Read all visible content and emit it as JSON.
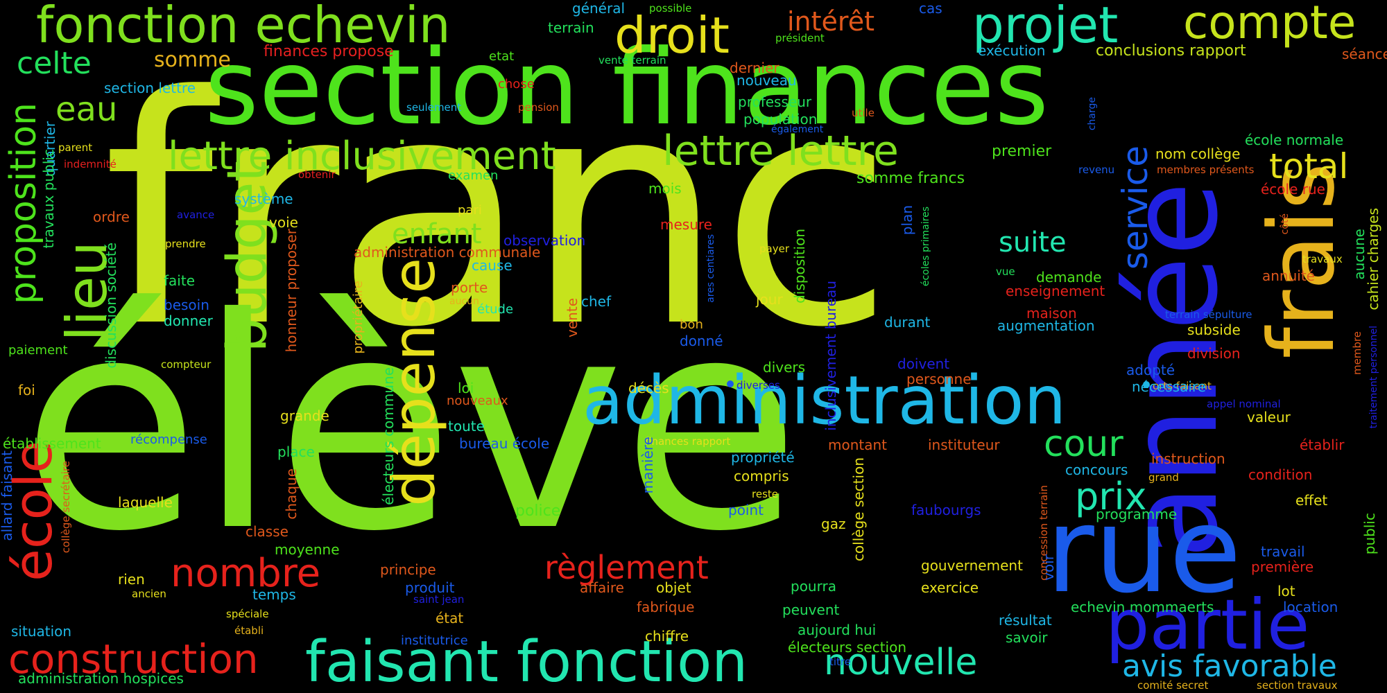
{
  "colors": {
    "background": "#000000",
    "palette": [
      "#c6e31c",
      "#7fe01e",
      "#4ee31c",
      "#23e05c",
      "#22e6b0",
      "#1fb7e6",
      "#1a5bea",
      "#2020e0",
      "#e6b21c",
      "#e6e01c",
      "#e0581c",
      "#e6221c",
      "#e62020"
    ]
  },
  "words": [
    {
      "text": "franc"
    },
    {
      "text": "élève"
    },
    {
      "text": "section finances"
    },
    {
      "text": "administration"
    },
    {
      "text": "année"
    },
    {
      "text": "frais"
    },
    {
      "text": "rue"
    },
    {
      "text": "partie"
    },
    {
      "text": "faisant fonction"
    },
    {
      "text": "fonction echevin"
    },
    {
      "text": "droit"
    },
    {
      "text": "projet"
    },
    {
      "text": "compte"
    },
    {
      "text": "lettre inclusivement"
    },
    {
      "text": "lettre lettre"
    },
    {
      "text": "budget"
    },
    {
      "text": "dépense"
    },
    {
      "text": "lieu"
    },
    {
      "text": "école"
    },
    {
      "text": "proposition"
    },
    {
      "text": "construction"
    },
    {
      "text": "nombre"
    },
    {
      "text": "règlement"
    },
    {
      "text": "nouvelle"
    },
    {
      "text": "service"
    },
    {
      "text": "total"
    },
    {
      "text": "avis favorable"
    },
    {
      "text": "cour"
    },
    {
      "text": "prix"
    },
    {
      "text": "suite"
    },
    {
      "text": "enfant"
    },
    {
      "text": "eau"
    },
    {
      "text": "celte"
    },
    {
      "text": "somme"
    },
    {
      "text": "intérêt"
    },
    {
      "text": "général"
    },
    {
      "text": "possible"
    },
    {
      "text": "terrain"
    },
    {
      "text": "président"
    },
    {
      "text": "cas"
    },
    {
      "text": "exécution"
    },
    {
      "text": "conclusions rapport"
    },
    {
      "text": "séance"
    },
    {
      "text": "finances propose"
    },
    {
      "text": "etat"
    },
    {
      "text": "vente terrain"
    },
    {
      "text": "dernier"
    },
    {
      "text": "nouveau"
    },
    {
      "text": "chose"
    },
    {
      "text": "pension"
    },
    {
      "text": "seulement"
    },
    {
      "text": "section lettre"
    },
    {
      "text": "professeur"
    },
    {
      "text": "population"
    },
    {
      "text": "utile"
    },
    {
      "text": "également"
    },
    {
      "text": "charge"
    },
    {
      "text": "école normale"
    },
    {
      "text": "quartier"
    },
    {
      "text": "travaux public"
    },
    {
      "text": "indemnité"
    },
    {
      "text": "parent"
    },
    {
      "text": "obtenir"
    },
    {
      "text": "examen"
    },
    {
      "text": "somme francs"
    },
    {
      "text": "premier"
    },
    {
      "text": "nom collège"
    },
    {
      "text": "revenu"
    },
    {
      "text": "membres présents"
    },
    {
      "text": "école rue"
    },
    {
      "text": "système"
    },
    {
      "text": "avance"
    },
    {
      "text": "mois"
    },
    {
      "text": "ordre"
    },
    {
      "text": "voie"
    },
    {
      "text": "pari"
    },
    {
      "text": "mesure"
    },
    {
      "text": "plan"
    },
    {
      "text": "écoles primaires"
    },
    {
      "text": "côté"
    },
    {
      "text": "prendre"
    },
    {
      "text": "observation"
    },
    {
      "text": "administration communale"
    },
    {
      "text": "payer"
    },
    {
      "text": "ares centiares"
    },
    {
      "text": "travaux"
    },
    {
      "text": "cahier charges"
    },
    {
      "text": "cause"
    },
    {
      "text": "vue"
    },
    {
      "text": "demande"
    },
    {
      "text": "annuité"
    },
    {
      "text": "faite"
    },
    {
      "text": "porte"
    },
    {
      "text": "aucun"
    },
    {
      "text": "chef"
    },
    {
      "text": "jour"
    },
    {
      "text": "disposition"
    },
    {
      "text": "enseignement"
    },
    {
      "text": "aucune"
    },
    {
      "text": "besoin"
    },
    {
      "text": "honneur proposer"
    },
    {
      "text": "propriétaire"
    },
    {
      "text": "discussion société"
    },
    {
      "text": "donner"
    },
    {
      "text": "étude"
    },
    {
      "text": "vente"
    },
    {
      "text": "bon"
    },
    {
      "text": "maison"
    },
    {
      "text": "terrain sépulture"
    },
    {
      "text": "augmentation"
    },
    {
      "text": "durant"
    },
    {
      "text": "subside"
    },
    {
      "text": "paiement"
    },
    {
      "text": "donné"
    },
    {
      "text": "inclusivement bureau"
    },
    {
      "text": "division"
    },
    {
      "text": "membre"
    },
    {
      "text": "traitement personnel"
    },
    {
      "text": "compteur"
    },
    {
      "text": "divers"
    },
    {
      "text": "doivent"
    },
    {
      "text": "adopté"
    },
    {
      "text": "diverses"
    },
    {
      "text": "orts faisant"
    },
    {
      "text": "foi"
    },
    {
      "text": "loi"
    },
    {
      "text": "décès"
    },
    {
      "text": "personne"
    },
    {
      "text": "nécessaire"
    },
    {
      "text": "appel nominal"
    },
    {
      "text": "électeurs commune"
    },
    {
      "text": "nouveaux"
    },
    {
      "text": "grande"
    },
    {
      "text": "valeur"
    },
    {
      "text": "établissement"
    },
    {
      "text": "récompense"
    },
    {
      "text": "toute"
    },
    {
      "text": "bureau école"
    },
    {
      "text": "finances rapport"
    },
    {
      "text": "montant"
    },
    {
      "text": "instituteur"
    },
    {
      "text": "établir"
    },
    {
      "text": "place"
    },
    {
      "text": "propriété"
    },
    {
      "text": "instruction"
    },
    {
      "text": "allard faisant"
    },
    {
      "text": "collège secrétaire"
    },
    {
      "text": "chaque"
    },
    {
      "text": "manière"
    },
    {
      "text": "compris"
    },
    {
      "text": "collège section"
    },
    {
      "text": "concours"
    },
    {
      "text": "grand"
    },
    {
      "text": "condition"
    },
    {
      "text": "laquelle"
    },
    {
      "text": "reste"
    },
    {
      "text": "police"
    },
    {
      "text": "point"
    },
    {
      "text": "faubourgs"
    },
    {
      "text": "programme"
    },
    {
      "text": "effet"
    },
    {
      "text": "classe"
    },
    {
      "text": "gaz"
    },
    {
      "text": "concession terrain"
    },
    {
      "text": "moyenne"
    },
    {
      "text": "travail"
    },
    {
      "text": "public"
    },
    {
      "text": "principe"
    },
    {
      "text": "gouvernement"
    },
    {
      "text": "première"
    },
    {
      "text": "rien"
    },
    {
      "text": "produit"
    },
    {
      "text": "affaire"
    },
    {
      "text": "objet"
    },
    {
      "text": "pourra"
    },
    {
      "text": "voir"
    },
    {
      "text": "temps"
    },
    {
      "text": "saint jean"
    },
    {
      "text": "exercice"
    },
    {
      "text": "lot"
    },
    {
      "text": "ancien"
    },
    {
      "text": "fabrique"
    },
    {
      "text": "peuvent"
    },
    {
      "text": "echevin mommaerts"
    },
    {
      "text": "location"
    },
    {
      "text": "spéciale"
    },
    {
      "text": "état"
    },
    {
      "text": "résultat"
    },
    {
      "text": "situation"
    },
    {
      "text": "établi"
    },
    {
      "text": "aujourd hui"
    },
    {
      "text": "savoir"
    },
    {
      "text": "chiffre"
    },
    {
      "text": "institutrice"
    },
    {
      "text": "électeurs section"
    },
    {
      "text": "administration hospices"
    },
    {
      "text": "titre"
    },
    {
      "text": "comité secret"
    },
    {
      "text": "section travaux"
    }
  ]
}
